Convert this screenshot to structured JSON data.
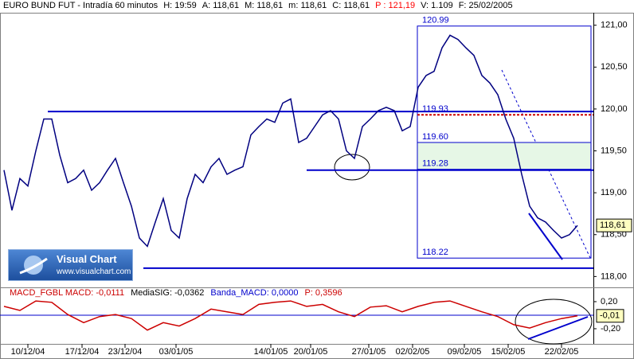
{
  "header": {
    "title": "EURO BUND FUT - Intradía 60 minutos",
    "info": [
      {
        "text": "H: 19:59",
        "color": "#000000"
      },
      {
        "text": "A: 118,61",
        "color": "#000000"
      },
      {
        "text": "M: 118,61",
        "color": "#000000"
      },
      {
        "text": "m: 118,61",
        "color": "#000000"
      },
      {
        "text": "C: 118,61",
        "color": "#000000"
      },
      {
        "text": "P : 121,19",
        "color": "#ff0000"
      },
      {
        "text": "V: 1.109",
        "color": "#000000"
      },
      {
        "text": "F: 25/02/2005",
        "color": "#000000"
      }
    ]
  },
  "logo": {
    "name": "Visual Chart",
    "url": "www.visualchart.com"
  },
  "chart_data": [
    {
      "type": "line",
      "color": "#000080",
      "values": [
        119.27,
        118.79,
        119.17,
        119.08,
        119.5,
        119.88,
        119.88,
        119.45,
        119.12,
        119.17,
        119.27,
        119.03,
        119.12,
        119.27,
        119.41,
        119.12,
        118.84,
        118.46,
        118.36,
        118.65,
        118.93,
        118.55,
        118.46,
        118.93,
        119.22,
        119.12,
        119.31,
        119.41,
        119.22,
        119.27,
        119.31,
        119.69,
        119.79,
        119.88,
        119.84,
        120.07,
        120.12,
        119.6,
        119.65,
        119.79,
        119.93,
        119.98,
        119.88,
        119.5,
        119.41,
        119.79,
        119.88,
        119.98,
        120.02,
        119.98,
        119.74,
        119.79,
        120.26,
        120.4,
        120.45,
        120.73,
        120.88,
        120.83,
        120.73,
        120.64,
        120.4,
        120.31,
        120.17,
        119.88,
        119.65,
        119.22,
        118.84,
        118.7,
        118.65,
        118.55,
        118.46,
        118.5,
        118.61
      ],
      "xlim": [
        -0.5,
        74
      ],
      "xticks": [
        {
          "value": 3,
          "label": "10/12/04"
        },
        {
          "value": 9.8,
          "label": "17/12/04"
        },
        {
          "value": 15.2,
          "label": "23/12/04"
        },
        {
          "value": 21.6,
          "label": "03/01/05"
        },
        {
          "value": 33.5,
          "label": "14/01/05"
        },
        {
          "value": 38.5,
          "label": "20/01/05"
        },
        {
          "value": 45.8,
          "label": "27/01/05"
        },
        {
          "value": 51.3,
          "label": "02/02/05"
        },
        {
          "value": 57.8,
          "label": "09/02/05"
        },
        {
          "value": 63.3,
          "label": "15/02/05"
        },
        {
          "value": 70,
          "label": "22/02/05"
        }
      ],
      "ylim": [
        117.88,
        121.13
      ],
      "yticks": [
        {
          "value": 118,
          "label": "118,00"
        },
        {
          "value": 118.5,
          "label": "118,50"
        },
        {
          "value": 119,
          "label": "119,00"
        },
        {
          "value": 119.5,
          "label": "119,50"
        },
        {
          "value": 120,
          "label": "120,00"
        },
        {
          "value": 120.5,
          "label": "120,50"
        },
        {
          "value": 121,
          "label": "121,00"
        }
      ],
      "last_value": {
        "value": 118.61,
        "label": "118,61"
      },
      "levels": [
        {
          "value": 119.97,
          "color": "#0000cc"
        },
        {
          "value": 119.93,
          "color": "#cc0000"
        },
        {
          "value": 119.27,
          "color": "#0000cc"
        },
        {
          "value": 118.1,
          "color": "#0000cc"
        }
      ],
      "fibonacci": [
        {
          "value": 120.99,
          "label": "120.99"
        },
        {
          "value": 119.93,
          "label": "119.93"
        },
        {
          "value": 119.6,
          "label": "119.60"
        },
        {
          "value": 119.28,
          "label": "119.28"
        },
        {
          "value": 118.22,
          "label": "118.22"
        }
      ],
      "zone_color": "#e6f7e6"
    },
    {
      "type": "line",
      "color": "#cc0000",
      "legend": [
        {
          "text": "MACD_FGBL MACD: -0,0111",
          "color": "#cc0000"
        },
        {
          "text": "MediaSIG: -0,0362",
          "color": "#000000"
        },
        {
          "text": "Banda_MACD: 0,0000",
          "color": "#0000cc"
        },
        {
          "text": "P: 0,3596",
          "color": "#cc0000"
        }
      ],
      "values": [
        0.13,
        0.07,
        0.21,
        0.19,
        0.01,
        -0.11,
        -0.02,
        0.01,
        -0.05,
        -0.22,
        -0.11,
        -0.16,
        -0.05,
        0.09,
        0.05,
        0.01,
        0.16,
        0.19,
        0.21,
        0.13,
        0.16,
        0.05,
        -0.02,
        0.12,
        0.14,
        0.05,
        0.13,
        0.19,
        0.21,
        0.13,
        0.05,
        -0.02,
        -0.14,
        -0.19,
        -0.11,
        -0.05,
        -0.01
      ],
      "ylim": [
        -0.424,
        0.376
      ],
      "yticks": [
        {
          "value": 0.2,
          "label": "0,20"
        },
        {
          "value": -0.2,
          "label": "-0,20"
        }
      ],
      "band": 0,
      "last_value": {
        "value": -0.01,
        "label": "-0,01"
      }
    }
  ]
}
